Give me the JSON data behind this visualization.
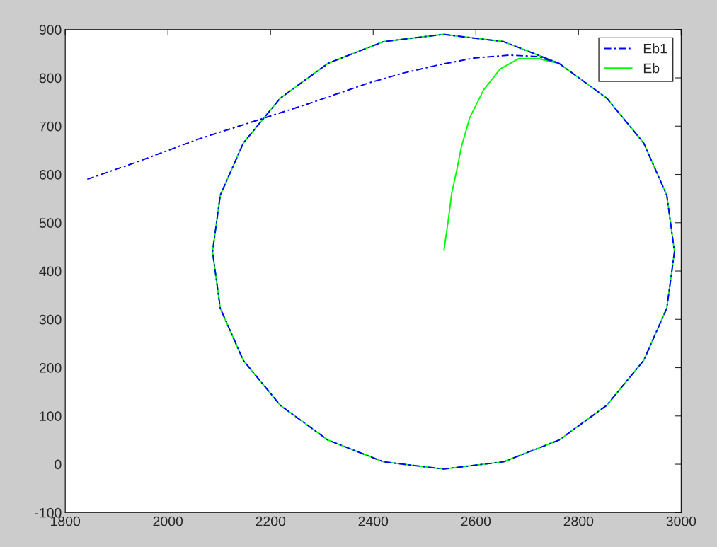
{
  "chart_data": {
    "type": "line",
    "xlim": [
      1800,
      3000
    ],
    "xticks": [
      1800,
      2000,
      2200,
      2400,
      2600,
      2800,
      3000
    ],
    "ylim": [
      -100,
      900
    ],
    "yticks": [
      -100,
      0,
      100,
      200,
      300,
      400,
      500,
      600,
      700,
      800,
      900
    ],
    "grid": false,
    "legend": "top right",
    "series": [
      {
        "name": "Eb1",
        "color": "#0000ff",
        "line_style": "dashdot",
        "x": [
          1843,
          1935,
          2059,
          2156,
          2270,
          2390,
          2459,
          2528,
          2597,
          2666,
          2721,
          2762,
          2855,
          2927,
          2972,
          2987,
          2972,
          2927,
          2855,
          2762,
          2654,
          2537,
          2420,
          2312,
          2219,
          2147,
          2102,
          2087,
          2102,
          2147,
          2219,
          2312,
          2420,
          2537,
          2654,
          2762
        ],
        "values": [
          590,
          624,
          673,
          706,
          745,
          789,
          810,
          827,
          841,
          847,
          844,
          830,
          758,
          665,
          557,
          440,
          323,
          215,
          122,
          50,
          5,
          -10,
          5,
          50,
          122,
          215,
          323,
          440,
          557,
          665,
          758,
          830,
          875,
          890,
          875,
          830
        ]
      },
      {
        "name": "Eb",
        "color": "#00ff00",
        "line_style": "solid",
        "x": [
          2538,
          2546,
          2553,
          2563,
          2572,
          2588,
          2615,
          2648,
          2684,
          2721,
          2762,
          2855,
          2927,
          2972,
          2987,
          2972,
          2927,
          2855,
          2762,
          2654,
          2537,
          2420,
          2312,
          2219,
          2147,
          2102,
          2087,
          2102,
          2147,
          2219,
          2312,
          2420,
          2537,
          2654,
          2762
        ],
        "values": [
          444,
          503,
          561,
          610,
          658,
          717,
          775,
          819,
          840,
          840,
          830,
          758,
          665,
          557,
          440,
          323,
          215,
          122,
          50,
          5,
          -10,
          5,
          50,
          122,
          215,
          323,
          440,
          557,
          665,
          758,
          830,
          875,
          890,
          875,
          830
        ]
      }
    ]
  }
}
